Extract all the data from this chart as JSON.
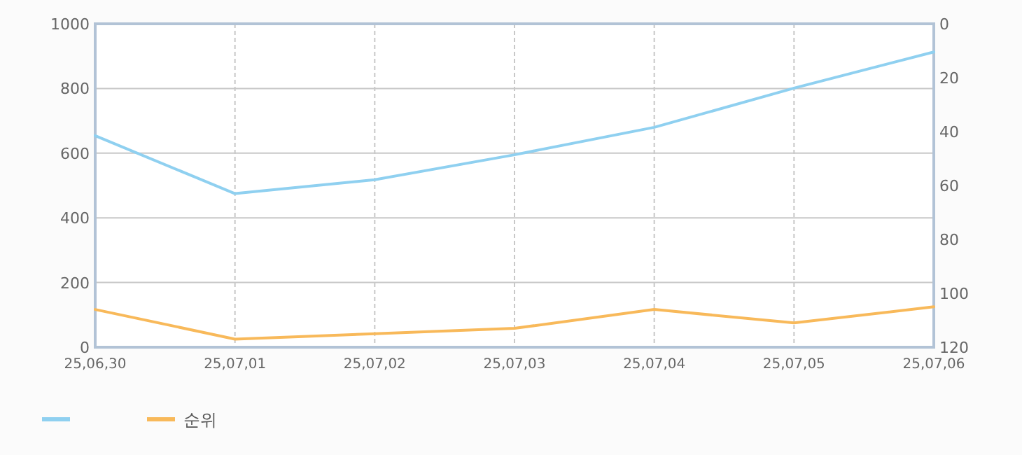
{
  "chart_data": {
    "type": "line",
    "categories": [
      "25,06,30",
      "25,07,01",
      "25,07,02",
      "25,07,03",
      "25,07,04",
      "25,07,05",
      "25,07,06"
    ],
    "series": [
      {
        "color": "#8fd0f0",
        "values": [
          654,
          475,
          518,
          595,
          680,
          801,
          913
        ]
      },
      {
        "name": "순위",
        "color": "#f8b95a",
        "axis": "y2",
        "values": [
          106,
          117,
          115,
          113,
          106,
          111,
          105
        ]
      }
    ],
    "ylim": [
      0,
      1000
    ],
    "yticks": [
      0,
      200,
      400,
      600,
      800,
      1000
    ],
    "y2lim": [
      120,
      0
    ],
    "y2ticks": [
      0,
      20,
      40,
      60,
      80,
      100,
      120
    ],
    "grid": true,
    "legend": "bottom"
  }
}
